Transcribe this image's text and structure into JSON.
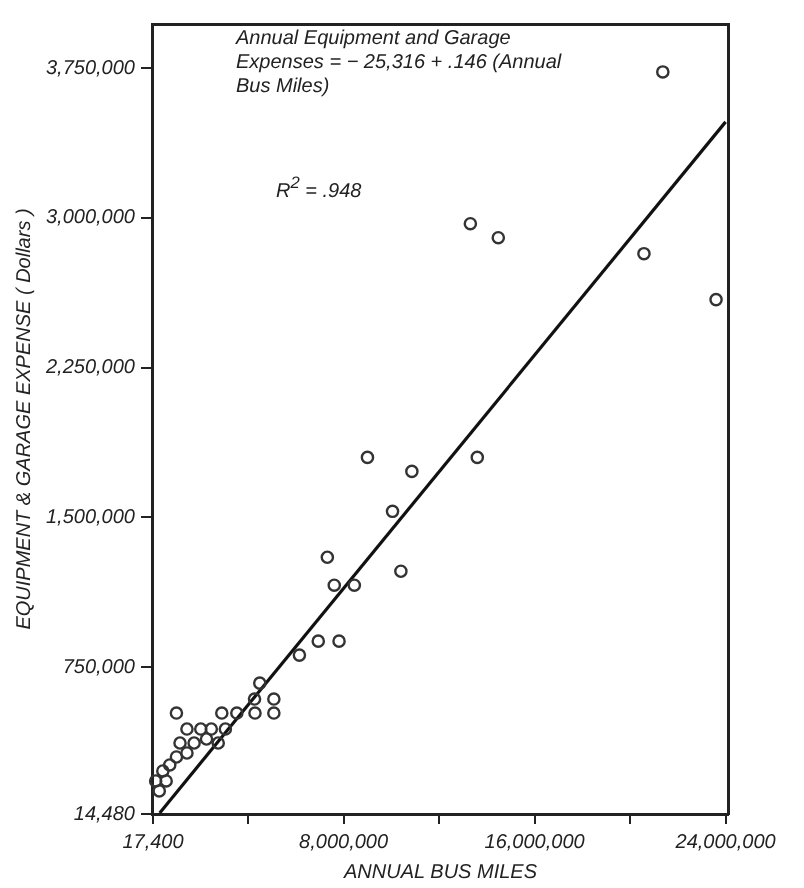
{
  "chart_data": {
    "type": "scatter",
    "xlabel": "ANNUAL BUS MILES",
    "ylabel": "EQUIPMENT & GARAGE EXPENSE ( Dollars )",
    "xlim": [
      17400,
      24100000
    ],
    "ylim": [
      14480,
      3970000
    ],
    "xticks": [
      {
        "value": 17400,
        "label": "17,400"
      },
      {
        "value": 4000000,
        "label": null
      },
      {
        "value": 8000000,
        "label": "8,000,000"
      },
      {
        "value": 12000000,
        "label": null
      },
      {
        "value": 16000000,
        "label": "16,000,000"
      },
      {
        "value": 20000000,
        "label": null
      },
      {
        "value": 24000000,
        "label": "24,000,000"
      }
    ],
    "yticks": [
      {
        "value": 14480,
        "label": "14,480"
      },
      {
        "value": 750000,
        "label": "750,000"
      },
      {
        "value": 1500000,
        "label": "1,500,000"
      },
      {
        "value": 2250000,
        "label": "2,250,000"
      },
      {
        "value": 3000000,
        "label": "3,000,000"
      },
      {
        "value": 3750000,
        "label": "3,750,000"
      }
    ],
    "grid": false,
    "legend": false,
    "annotations": [
      "Annual Equipment and Garage Expenses = − 25,316 + .146 (Annual Bus Miles)",
      "R$^{2}$ = .948"
    ],
    "series": [
      {
        "type": "scatter",
        "color": "#333333",
        "marker": "circle",
        "x": [
          21370000,
          13310000,
          14480000,
          20580000,
          23600000,
          9000000,
          10860000,
          13600000,
          10050000,
          7320000,
          10400000,
          7610000,
          8450000,
          6150000,
          6940000,
          7810000,
          4490000,
          5080000,
          4270000,
          3530000,
          4290000,
          5080000,
          2900000,
          1000000,
          1440000,
          2020000,
          2460000,
          3050000,
          2750000,
          2260000,
          1740000,
          1150000,
          1440000,
          1000000,
          720000,
          430000,
          130000,
          570000,
          280000
        ],
        "values": [
          3730000,
          2970000,
          2900000,
          2820000,
          2590000,
          1800000,
          1730000,
          1800000,
          1530000,
          1300000,
          1230000,
          1160000,
          1160000,
          810000,
          880000,
          880000,
          670000,
          590000,
          590000,
          520000,
          520000,
          520000,
          520000,
          520000,
          440000,
          440000,
          440000,
          440000,
          370000,
          390000,
          370000,
          370000,
          320000,
          300000,
          260000,
          230000,
          180000,
          180000,
          130000
        ]
      },
      {
        "type": "line",
        "color": "#111111",
        "marker": "none",
        "line_style": "solid",
        "x": [
          300000,
          24000000
        ],
        "values": [
          20000,
          3480000
        ]
      }
    ]
  }
}
